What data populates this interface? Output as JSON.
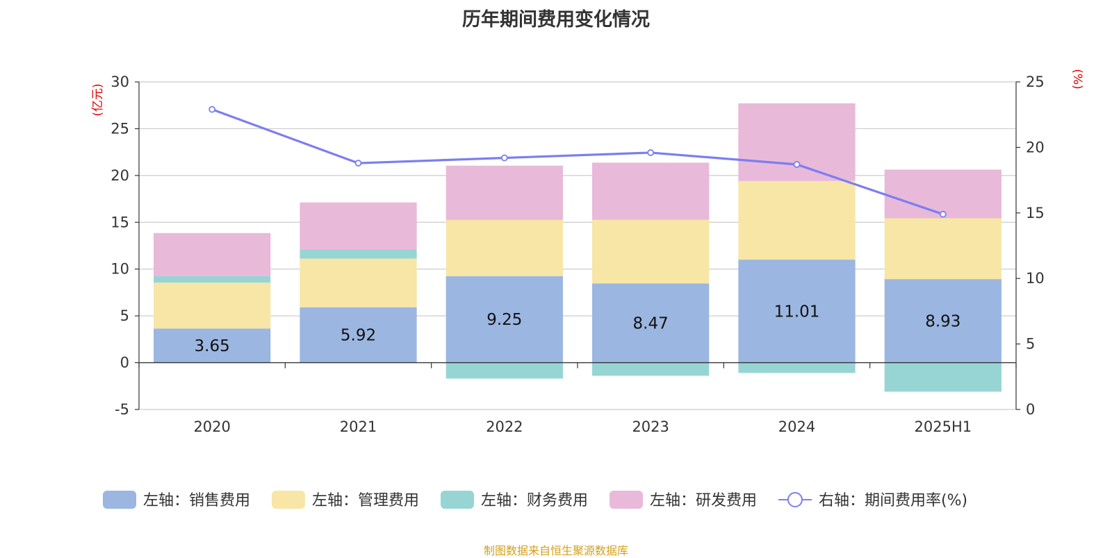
{
  "title": "历年期间费用变化情况",
  "source": "制图数据来自恒生聚源数据库",
  "chart_data": {
    "type": "bar",
    "stacked": true,
    "categories": [
      "2020",
      "2021",
      "2022",
      "2023",
      "2024",
      "2025H1"
    ],
    "left_axis": {
      "unit": "(亿元)",
      "ylim": [
        -5,
        30
      ],
      "ticks": [
        -5,
        0,
        5,
        10,
        15,
        20,
        25,
        30
      ]
    },
    "right_axis": {
      "unit": "(%)",
      "ylim": [
        0,
        25
      ],
      "ticks": [
        0,
        5,
        10,
        15,
        20,
        25
      ]
    },
    "grid": true,
    "legend_position": "bottom",
    "series": [
      {
        "name": "左轴：销售费用",
        "axis": "left",
        "type": "bar",
        "color": "#9bb6e0",
        "values": [
          3.65,
          5.92,
          9.25,
          8.47,
          11.01,
          8.93
        ],
        "show_labels": true
      },
      {
        "name": "左轴：管理费用",
        "axis": "left",
        "type": "bar",
        "color": "#f7e6a6",
        "values": [
          4.9,
          5.2,
          6.0,
          6.8,
          8.4,
          6.5
        ],
        "show_labels": false
      },
      {
        "name": "左轴：财务费用",
        "axis": "left",
        "type": "bar",
        "color": "#97d5d5",
        "values": [
          0.7,
          1.0,
          -1.7,
          -1.4,
          -1.1,
          -3.1
        ],
        "show_labels": false
      },
      {
        "name": "左轴：研发费用",
        "axis": "left",
        "type": "bar",
        "color": "#e8b9d9",
        "values": [
          4.6,
          5.0,
          5.8,
          6.1,
          8.3,
          5.2
        ],
        "show_labels": false
      },
      {
        "name": "右轴：期间费用率(%)",
        "axis": "right",
        "type": "line",
        "color": "#7b7ef0",
        "values": [
          22.9,
          18.8,
          19.2,
          19.6,
          18.7,
          14.9
        ],
        "show_labels": false
      }
    ]
  }
}
